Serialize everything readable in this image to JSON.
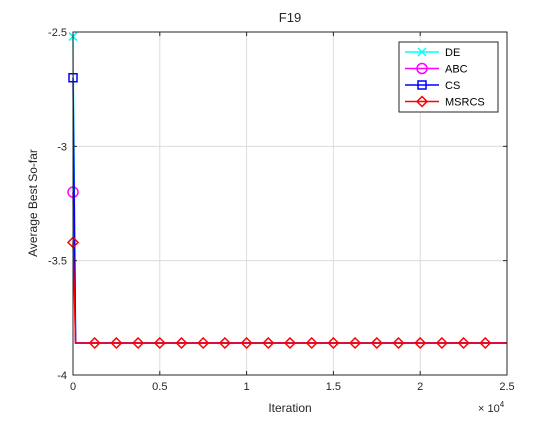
{
  "chart_data": {
    "type": "line",
    "title": "F19",
    "xlabel": "Iteration",
    "ylabel": "Average Best So-far",
    "x_exponent_label": "× 10",
    "x_exponent_power": "4",
    "xlim": [
      0,
      25000
    ],
    "ylim": [
      -4,
      -2.5
    ],
    "x_ticks": [
      0,
      5000,
      10000,
      15000,
      20000,
      25000
    ],
    "x_tick_labels": [
      "0",
      "0.5",
      "1",
      "1.5",
      "2",
      "2.5"
    ],
    "y_ticks": [
      -4,
      -3.5,
      -3,
      -2.5
    ],
    "y_tick_labels": [
      "-4",
      "-3.5",
      "-3",
      "-2.5"
    ],
    "grid": true,
    "legend_position": "top-right",
    "series": [
      {
        "name": "DE",
        "color": "#00FFFF",
        "marker": "x-mark",
        "x": [
          0,
          150,
          25000
        ],
        "y": [
          -2.52,
          -3.86,
          -3.86
        ],
        "marker_x": [
          0
        ]
      },
      {
        "name": "ABC",
        "color": "#FF00FF",
        "marker": "circle",
        "x": [
          0,
          150,
          25000
        ],
        "y": [
          -3.2,
          -3.86,
          -3.86
        ],
        "marker_x": [
          0
        ]
      },
      {
        "name": "CS",
        "color": "#0000FF",
        "marker": "square",
        "x": [
          0,
          150,
          25000
        ],
        "y": [
          -2.7,
          -3.86,
          -3.86
        ],
        "marker_x": [
          0
        ]
      },
      {
        "name": "MSRCS",
        "color": "#FF0000",
        "marker": "diamond",
        "x": [
          0,
          150,
          25000
        ],
        "y": [
          -3.42,
          -3.86,
          -3.86
        ],
        "marker_x": [
          0,
          1250,
          2500,
          3750,
          5000,
          6250,
          7500,
          8750,
          10000,
          11250,
          12500,
          13750,
          15000,
          16250,
          17500,
          18750,
          20000,
          21250,
          22500,
          23750
        ],
        "marker_y_flat": -3.86
      }
    ]
  }
}
